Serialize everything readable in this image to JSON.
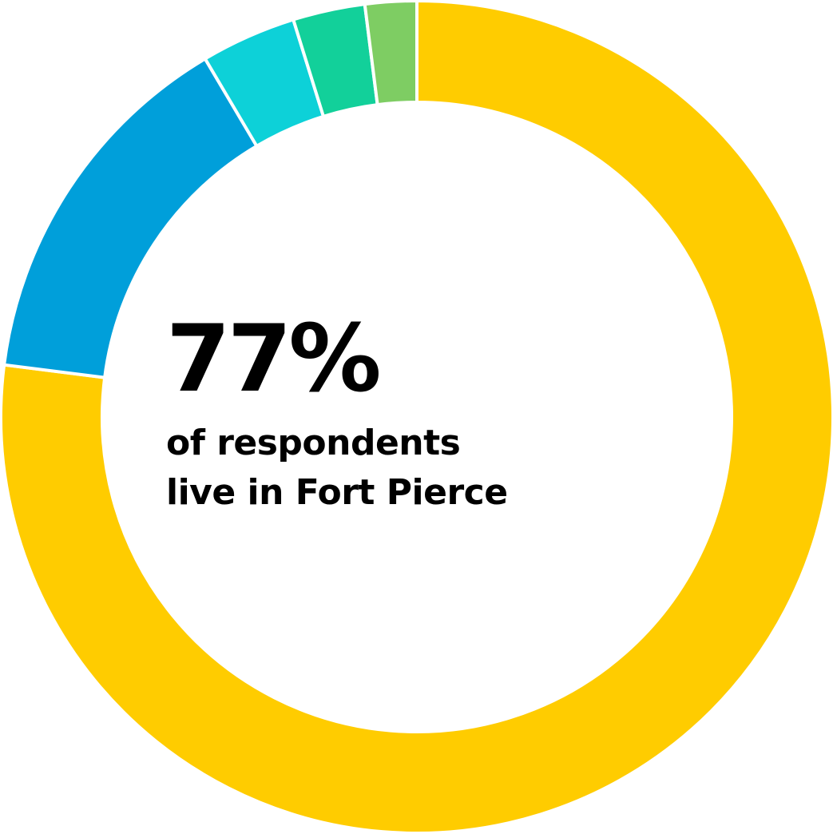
{
  "chart_data": {
    "type": "pie",
    "style": "donut",
    "start": "top",
    "direction": "clockwise",
    "slices": [
      {
        "value": 77,
        "color": "#FFCC00"
      },
      {
        "value": 14.5,
        "color": "#009FDA"
      },
      {
        "value": 3.7,
        "color": "#0DD1D8"
      },
      {
        "value": 2.8,
        "color": "#12D09A"
      },
      {
        "value": 2.0,
        "color": "#7ECD63"
      }
    ],
    "separator_color": "#ffffff"
  },
  "center": {
    "percent_text": "77%",
    "caption_line1": "of respondents",
    "caption_line2": "live in Fort Pierce"
  }
}
